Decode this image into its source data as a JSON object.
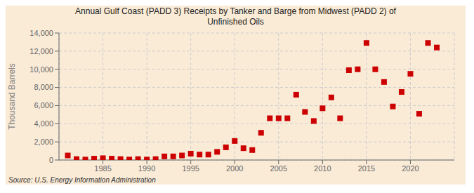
{
  "chart_data": {
    "type": "scatter",
    "title": "Annual Gulf Coast (PADD 3) Receipts by Tanker and Barge from Midwest (PADD 2) of\nUnfinished Oils",
    "ylabel": "Thousand Barrels",
    "source": "Source: U.S. Energy Information Administration",
    "x": [
      1981,
      1982,
      1983,
      1984,
      1985,
      1986,
      1987,
      1988,
      1989,
      1990,
      1991,
      1992,
      1993,
      1994,
      1995,
      1996,
      1997,
      1998,
      1999,
      2000,
      2001,
      2002,
      2003,
      2004,
      2005,
      2006,
      2007,
      2008,
      2009,
      2010,
      2011,
      2012,
      2013,
      2014,
      2015,
      2016,
      2017,
      2018,
      2019,
      2020,
      2021,
      2022,
      2023
    ],
    "values": [
      500,
      100,
      50,
      150,
      200,
      150,
      100,
      50,
      100,
      50,
      100,
      400,
      400,
      500,
      700,
      600,
      600,
      900,
      1400,
      2100,
      1300,
      1100,
      3000,
      4600,
      4600,
      4600,
      7200,
      5300,
      4300,
      5700,
      6900,
      4600,
      9900,
      10000,
      12900,
      10000,
      8600,
      5900,
      7500,
      9500,
      5100,
      12900,
      12400
    ],
    "color": "#cc0000",
    "marker": "square",
    "xlim": [
      1980,
      2025
    ],
    "ylim": [
      0,
      14000
    ],
    "xticks": [
      1985,
      1990,
      1995,
      2000,
      2005,
      2010,
      2015,
      2020
    ],
    "yticks": [
      0,
      {
        "value": 2000,
        "label": "2,000"
      },
      {
        "value": 4000,
        "label": "4,000"
      },
      {
        "value": 6000,
        "label": "6,000"
      },
      {
        "value": 8000,
        "label": "8,000"
      },
      {
        "value": 10000,
        "label": "10,000"
      },
      {
        "value": 12000,
        "label": "12,000"
      },
      {
        "value": 14000,
        "label": "14,000"
      }
    ],
    "grid": true
  }
}
